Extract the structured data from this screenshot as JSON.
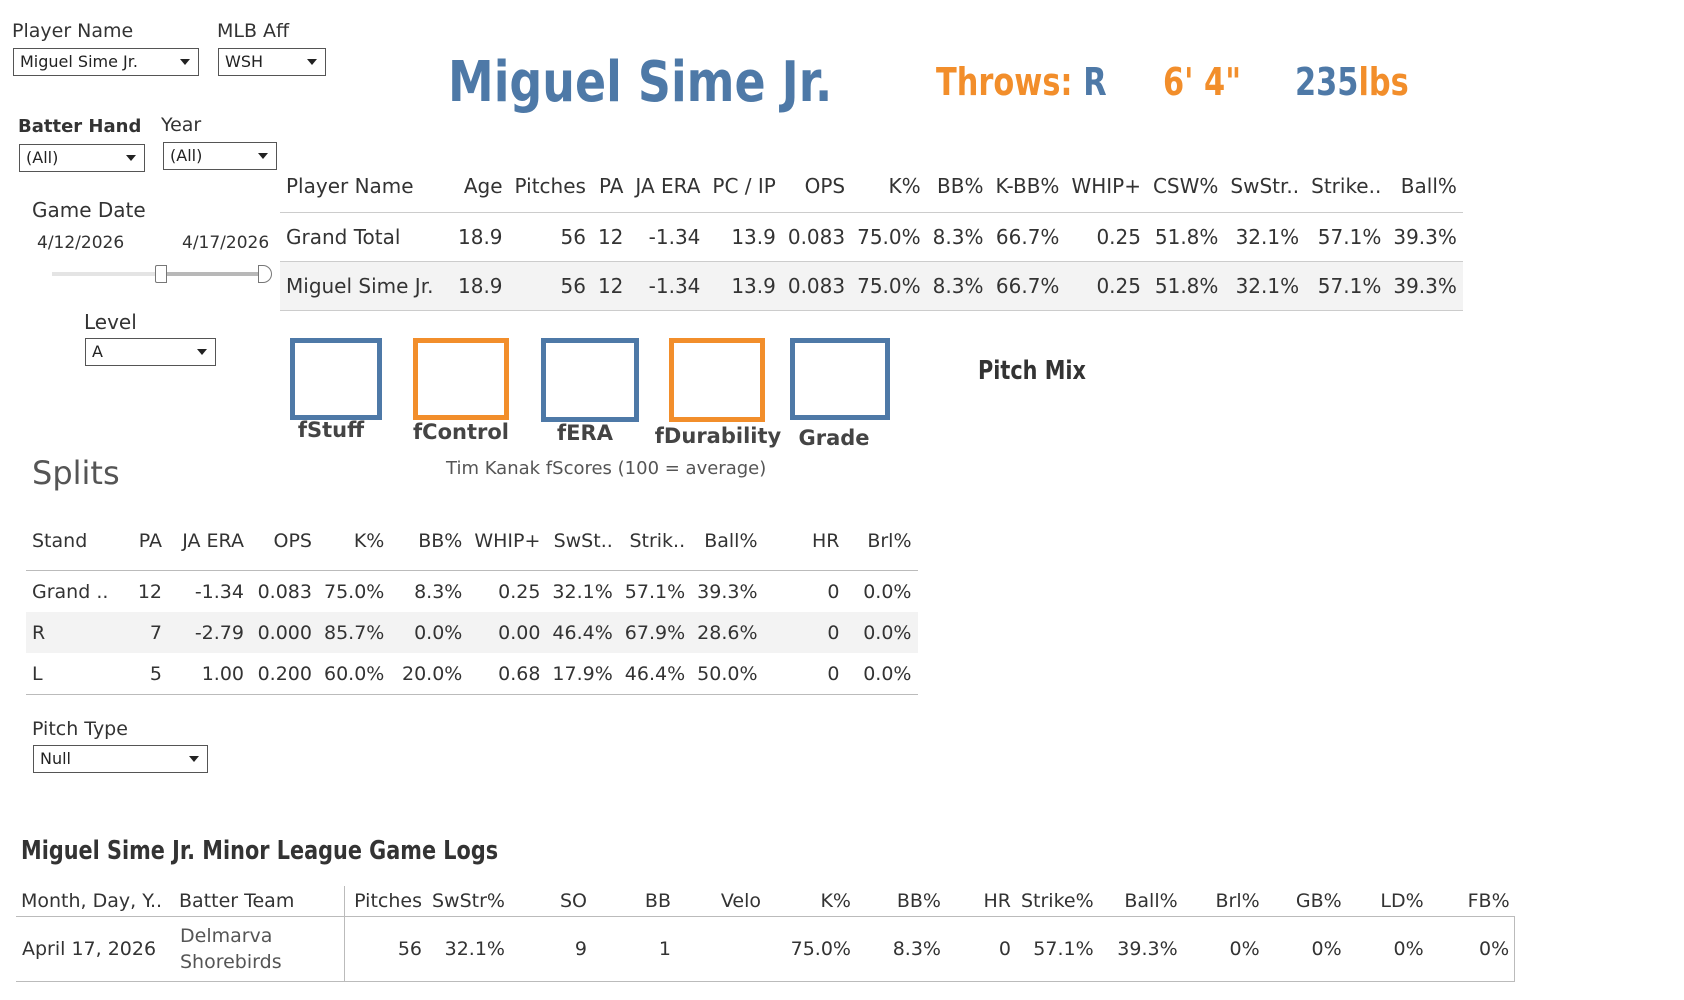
{
  "filters": {
    "player_name": {
      "label": "Player Name",
      "value": "Miguel Sime Jr."
    },
    "mlb_aff": {
      "label": "MLB Aff",
      "value": "WSH"
    },
    "batter_hand": {
      "label": "Batter Hand",
      "value": "(All)"
    },
    "year": {
      "label": "Year",
      "value": "(All)"
    },
    "game_date": {
      "label": "Game Date",
      "start": "4/12/2026",
      "end": "4/17/2026",
      "range_start": 0.51,
      "range_end": 1.0
    },
    "level": {
      "label": "Level",
      "value": "A"
    },
    "pitch_type": {
      "label": "Pitch Type",
      "value": "Null"
    }
  },
  "header": {
    "name": "Miguel Sime Jr.",
    "throws_label": "Throws:",
    "throws_value": "R",
    "height": "6' 4\"",
    "weight_value": "235",
    "weight_unit": "lbs"
  },
  "stats": {
    "columns": [
      "Player Name",
      "Age",
      "Pitches",
      "PA",
      "JA ERA",
      "PC / IP",
      "OPS",
      "K%",
      "BB%",
      "K-BB%",
      "WHIP+",
      "CSW%",
      "SwStr..",
      "Strike..",
      "Ball%"
    ],
    "rows": [
      [
        "Grand Total",
        "18.9",
        "56",
        "12",
        "-1.34",
        "13.9",
        "0.083",
        "75.0%",
        "8.3%",
        "66.7%",
        "0.25",
        "51.8%",
        "32.1%",
        "57.1%",
        "39.3%"
      ],
      [
        "Miguel Sime Jr.",
        "18.9",
        "56",
        "12",
        "-1.34",
        "13.9",
        "0.083",
        "75.0%",
        "8.3%",
        "66.7%",
        "0.25",
        "51.8%",
        "32.1%",
        "57.1%",
        "39.3%"
      ]
    ]
  },
  "fscores": {
    "items": [
      {
        "label": "fStuff",
        "color": "#4e79a7"
      },
      {
        "label": "fControl",
        "color": "#f28e2b"
      },
      {
        "label": "fERA",
        "color": "#4e79a7"
      },
      {
        "label": "fDurability",
        "color": "#f28e2b"
      },
      {
        "label": "Grade",
        "color": "#4e79a7"
      }
    ],
    "caption": "Tim Kanak fScores (100 = average)"
  },
  "pitch_mix": {
    "title": "Pitch Mix"
  },
  "splits": {
    "title": "Splits",
    "columns": [
      "Stand",
      "PA",
      "JA ERA",
      "OPS",
      "K%",
      "BB%",
      "WHIP+",
      "SwSt..",
      "Strik..",
      "Ball%",
      "HR",
      "Brl%"
    ],
    "rows": [
      [
        "Grand ..",
        "12",
        "-1.34",
        "0.083",
        "75.0%",
        "8.3%",
        "0.25",
        "32.1%",
        "57.1%",
        "39.3%",
        "0",
        "0.0%"
      ],
      [
        "R",
        "7",
        "-2.79",
        "0.000",
        "85.7%",
        "0.0%",
        "0.00",
        "46.4%",
        "67.9%",
        "28.6%",
        "0",
        "0.0%"
      ],
      [
        "L",
        "5",
        "1.00",
        "0.200",
        "60.0%",
        "20.0%",
        "0.68",
        "17.9%",
        "46.4%",
        "50.0%",
        "0",
        "0.0%"
      ]
    ]
  },
  "game_logs": {
    "title": "Miguel Sime Jr. Minor League Game Logs",
    "columns": [
      "Month, Day, Y..",
      "Batter Team",
      "Pitches",
      "SwStr%",
      "SO",
      "BB",
      "Velo",
      "K%",
      "BB%",
      "HR",
      "Strike%",
      "Ball%",
      "Brl%",
      "GB%",
      "LD%",
      "FB%"
    ],
    "rows": [
      {
        "date": "April 17, 2026",
        "team_line1": "Delmarva",
        "team_line2": "Shorebirds",
        "values": [
          "56",
          "32.1%",
          "9",
          "1",
          "",
          "75.0%",
          "8.3%",
          "0",
          "57.1%",
          "39.3%",
          "0%",
          "0%",
          "0%",
          "0%"
        ]
      }
    ]
  }
}
